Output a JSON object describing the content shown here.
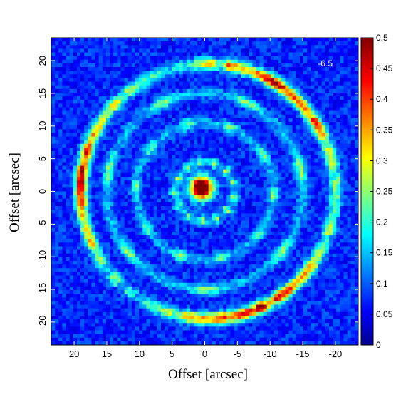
{
  "chart_data": {
    "type": "heatmap",
    "title": "",
    "xlabel": "Offset [arcsec]",
    "ylabel": "Offset [arcsec]",
    "xlim": [
      23.5,
      -23.5
    ],
    "ylim": [
      -23.5,
      23.5
    ],
    "x_ticks": [
      20,
      15,
      10,
      5,
      0,
      -5,
      -10,
      -15,
      -20
    ],
    "y_ticks": [
      20,
      15,
      10,
      5,
      0,
      -5,
      -10,
      -15,
      -20
    ],
    "annotation": "-6.5",
    "colorbar": {
      "min": 0,
      "max": 0.5,
      "ticks": [
        0,
        0.05,
        0.1,
        0.15,
        0.2,
        0.25,
        0.3,
        0.35,
        0.4,
        0.45,
        0.5
      ],
      "colormap": "jet"
    },
    "features": {
      "background_level": 0.08,
      "central_peak": {
        "x": 0.5,
        "y": 0.5,
        "peak": 0.5
      },
      "outer_ring": {
        "center": [
          -0.5,
          0
        ],
        "radius": 19.5,
        "intensity": 0.35
      },
      "inner_rings": [
        {
          "radius": 15.0,
          "intensity": 0.18
        },
        {
          "radius": 10.5,
          "intensity": 0.17
        },
        {
          "radius": 4.5,
          "intensity": 0.2
        }
      ]
    }
  }
}
